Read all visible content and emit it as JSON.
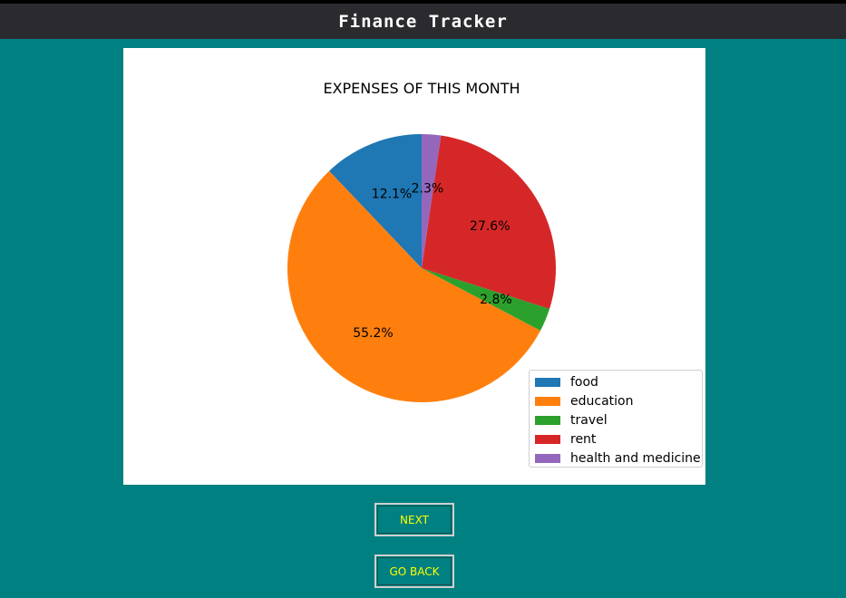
{
  "window": {
    "title": "Finance Tracker"
  },
  "chart_data": {
    "type": "pie",
    "title": "EXPENSES OF THIS MONTH",
    "categories": [
      "food",
      "education",
      "travel",
      "rent",
      "health and medicine"
    ],
    "values": [
      12.1,
      55.2,
      2.8,
      27.6,
      2.3
    ],
    "labels": [
      "12.1%",
      "55.2%",
      "2.8%",
      "27.6%",
      "2.3%"
    ],
    "colors": [
      "#1f77b4",
      "#ff7f0e",
      "#2ca02c",
      "#d62728",
      "#9467bd"
    ],
    "start_angle_deg": 90,
    "direction": "counterclockwise",
    "legend_position": "lower-right"
  },
  "buttons": {
    "next": "NEXT",
    "go_back": "GO BACK"
  }
}
